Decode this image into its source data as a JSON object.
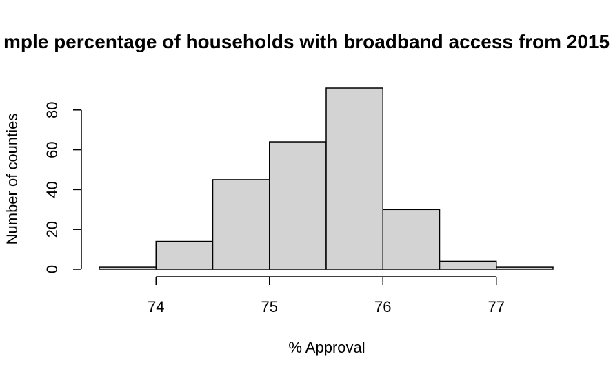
{
  "chart_data": {
    "type": "bar",
    "title": "mple percentage of households with broadband access from 2015",
    "xlabel": "% Approval",
    "ylabel": "Number of counties",
    "bins": [
      {
        "from": 73.5,
        "to": 74.0,
        "count": 1
      },
      {
        "from": 74.0,
        "to": 74.5,
        "count": 14
      },
      {
        "from": 74.5,
        "to": 75.0,
        "count": 45
      },
      {
        "from": 75.0,
        "to": 75.5,
        "count": 64
      },
      {
        "from": 75.5,
        "to": 76.0,
        "count": 91
      },
      {
        "from": 76.0,
        "to": 76.5,
        "count": 30
      },
      {
        "from": 76.5,
        "to": 77.0,
        "count": 4
      },
      {
        "from": 77.0,
        "to": 77.5,
        "count": 1
      }
    ],
    "x_ticks": [
      74,
      75,
      76,
      77
    ],
    "y_ticks": [
      0,
      20,
      40,
      60,
      80
    ],
    "xlim": [
      73.5,
      77.5
    ],
    "ylim": [
      0,
      91
    ],
    "bar_fill": "#d3d3d3",
    "bar_stroke": "#000000",
    "grid": false,
    "legend": "none"
  }
}
